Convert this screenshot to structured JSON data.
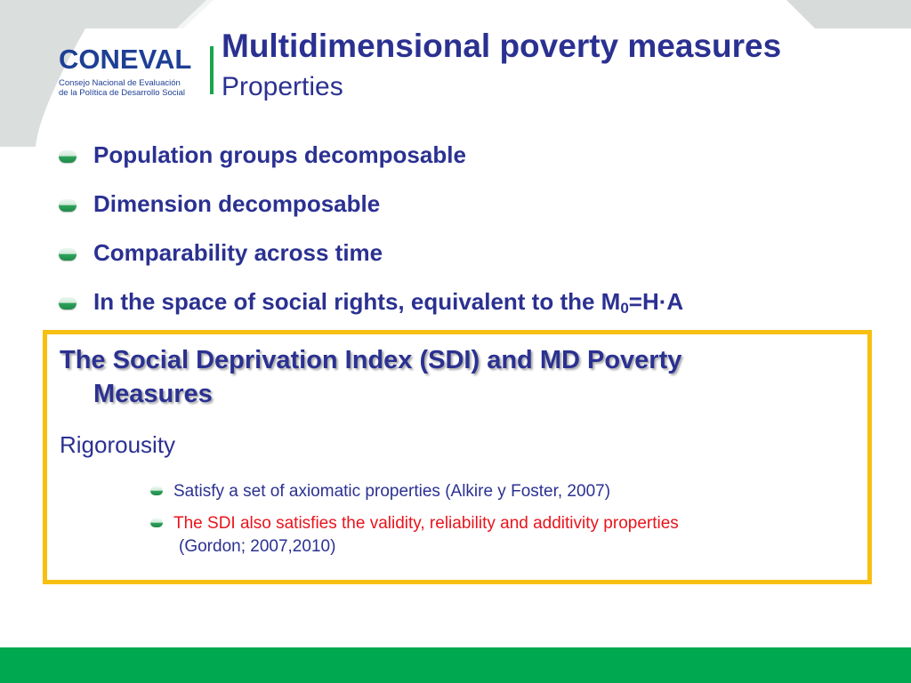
{
  "colors": {
    "title": "#2b3191",
    "accent_green": "#00a84f",
    "box_border": "#f7bf10",
    "highlight_red": "#e8141c",
    "frame_gray": "#d7dcdb"
  },
  "logo": {
    "wordmark": "CONEVAL",
    "line1": "Consejo Nacional de Evaluación",
    "line2": "de la Política de Desarrollo Social"
  },
  "header": {
    "title": "Multidimensional poverty measures",
    "subtitle": "Properties"
  },
  "bullets": [
    {
      "text": "Population groups decomposable"
    },
    {
      "text": "Dimension decomposable"
    },
    {
      "text": "Comparability across time"
    },
    {
      "text_before": "In the space of social rights, equivalent to the M",
      "subscript": "0",
      "text_after": "=H·A"
    }
  ],
  "box": {
    "heading_line1": "The Social Deprivation Index (SDI) and MD Poverty",
    "heading_line2": "Measures",
    "subheading": "Rigorousity",
    "items": [
      {
        "text": "Satisfy a set of axiomatic properties (Alkire y Foster, 2007)"
      },
      {
        "text": "The SDI also satisfies the validity, reliability and additivity properties",
        "continuation": "(Gordon; 2007,2010)"
      }
    ]
  }
}
